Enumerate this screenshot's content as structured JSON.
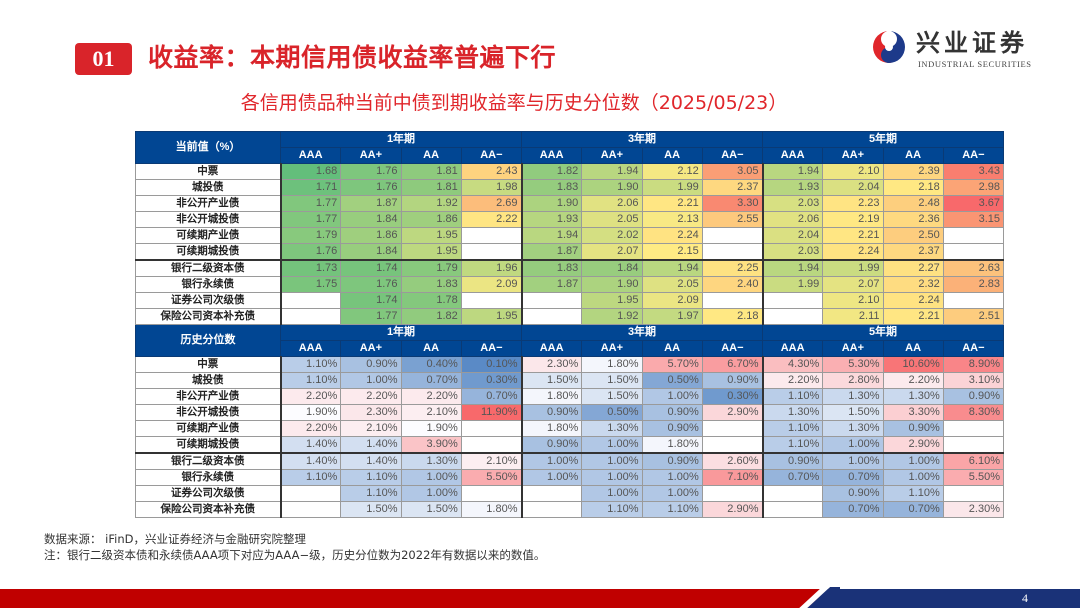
{
  "header": {
    "section_number": "01",
    "title": "收益率：本期信用债收益率普遍下行",
    "logo": {
      "name_cn": "兴业证券",
      "name_en": "INDUSTRIAL SECURITIES",
      "icon": "taiji-swirl-logo-icon"
    }
  },
  "subtitle": "各信用债品种当前中债到期收益率与历史分位数（2025/05/23）",
  "table": {
    "periods": [
      "1年期",
      "3年期",
      "5年期"
    ],
    "grades": [
      "AAA",
      "AA+",
      "AA",
      "AA−"
    ],
    "current": {
      "title": "当前值（%）",
      "rows": [
        {
          "label": "中票",
          "values": [
            "1.68",
            "1.76",
            "1.81",
            "2.43",
            "1.82",
            "1.94",
            "2.12",
            "3.05",
            "1.94",
            "2.10",
            "2.39",
            "3.43"
          ]
        },
        {
          "label": "城投债",
          "values": [
            "1.71",
            "1.76",
            "1.81",
            "1.98",
            "1.83",
            "1.90",
            "1.99",
            "2.37",
            "1.93",
            "2.04",
            "2.18",
            "2.98"
          ]
        },
        {
          "label": "非公开产业债",
          "values": [
            "1.77",
            "1.87",
            "1.92",
            "2.69",
            "1.90",
            "2.06",
            "2.21",
            "3.30",
            "2.03",
            "2.23",
            "2.48",
            "3.67"
          ]
        },
        {
          "label": "非公开城投债",
          "values": [
            "1.77",
            "1.84",
            "1.86",
            "2.22",
            "1.93",
            "2.05",
            "2.13",
            "2.55",
            "2.06",
            "2.19",
            "2.36",
            "3.15"
          ]
        },
        {
          "label": "可续期产业债",
          "values": [
            "1.79",
            "1.86",
            "1.95",
            "",
            "1.94",
            "2.02",
            "2.24",
            "",
            "2.04",
            "2.21",
            "2.50",
            ""
          ]
        },
        {
          "label": "可续期城投债",
          "values": [
            "1.76",
            "1.84",
            "1.95",
            "",
            "1.87",
            "2.07",
            "2.15",
            "",
            "2.03",
            "2.24",
            "2.37",
            ""
          ]
        },
        {
          "label": "银行二级资本债",
          "values": [
            "1.73",
            "1.74",
            "1.79",
            "1.96",
            "1.83",
            "1.84",
            "1.94",
            "2.25",
            "1.94",
            "1.99",
            "2.27",
            "2.63"
          ]
        },
        {
          "label": "银行永续债",
          "values": [
            "1.75",
            "1.76",
            "1.83",
            "2.09",
            "1.87",
            "1.90",
            "2.05",
            "2.40",
            "1.99",
            "2.07",
            "2.32",
            "2.83"
          ]
        },
        {
          "label": "证券公司次级债",
          "values": [
            "",
            "1.74",
            "1.78",
            "",
            "",
            "1.95",
            "2.09",
            "",
            "",
            "2.10",
            "2.24",
            ""
          ]
        },
        {
          "label": "保险公司资本补充债",
          "values": [
            "",
            "1.77",
            "1.82",
            "1.95",
            "",
            "1.92",
            "1.97",
            "2.18",
            "",
            "2.11",
            "2.21",
            "2.51"
          ]
        }
      ]
    },
    "percentile": {
      "title": "历史分位数",
      "rows": [
        {
          "label": "中票",
          "values": [
            "1.10%",
            "0.90%",
            "0.40%",
            "0.10%",
            "2.30%",
            "1.80%",
            "5.70%",
            "6.70%",
            "4.30%",
            "5.30%",
            "10.60%",
            "8.90%"
          ]
        },
        {
          "label": "城投债",
          "values": [
            "1.10%",
            "1.00%",
            "0.70%",
            "0.30%",
            "1.50%",
            "1.50%",
            "0.50%",
            "0.90%",
            "2.20%",
            "2.80%",
            "2.20%",
            "3.10%"
          ]
        },
        {
          "label": "非公开产业债",
          "values": [
            "2.20%",
            "2.20%",
            "2.20%",
            "0.70%",
            "1.80%",
            "1.50%",
            "1.00%",
            "0.30%",
            "1.10%",
            "1.30%",
            "1.30%",
            "0.90%"
          ]
        },
        {
          "label": "非公开城投债",
          "values": [
            "1.90%",
            "2.30%",
            "2.10%",
            "11.90%",
            "0.90%",
            "0.50%",
            "0.90%",
            "2.90%",
            "1.30%",
            "1.50%",
            "3.30%",
            "8.30%"
          ]
        },
        {
          "label": "可续期产业债",
          "values": [
            "2.20%",
            "2.10%",
            "1.90%",
            "",
            "1.80%",
            "1.30%",
            "0.90%",
            "",
            "1.10%",
            "1.30%",
            "0.90%",
            ""
          ]
        },
        {
          "label": "可续期城投债",
          "values": [
            "1.40%",
            "1.40%",
            "3.90%",
            "",
            "0.90%",
            "1.00%",
            "1.80%",
            "",
            "1.10%",
            "1.00%",
            "2.90%",
            ""
          ]
        },
        {
          "label": "银行二级资本债",
          "values": [
            "1.40%",
            "1.40%",
            "1.30%",
            "2.10%",
            "1.00%",
            "1.00%",
            "0.90%",
            "2.60%",
            "0.90%",
            "1.00%",
            "1.00%",
            "6.10%"
          ]
        },
        {
          "label": "银行永续债",
          "values": [
            "1.10%",
            "1.10%",
            "1.00%",
            "5.50%",
            "1.00%",
            "1.00%",
            "1.00%",
            "7.10%",
            "0.70%",
            "0.70%",
            "1.00%",
            "5.50%"
          ]
        },
        {
          "label": "证券公司次级债",
          "values": [
            "",
            "1.10%",
            "1.00%",
            "",
            "",
            "1.00%",
            "1.00%",
            "",
            "",
            "0.90%",
            "1.10%",
            ""
          ]
        },
        {
          "label": "保险公司资本补充债",
          "values": [
            "",
            "1.50%",
            "1.50%",
            "1.80%",
            "",
            "1.10%",
            "1.10%",
            "2.90%",
            "",
            "0.70%",
            "0.70%",
            "2.30%"
          ]
        }
      ]
    }
  },
  "notes": {
    "source": "数据来源： iFinD，兴业证券经济与金融研究院整理",
    "remark": "注：银行二级资本债和永续债AAA项下对应为AAA−级，历史分位数为2022年有数据以来的数值。"
  },
  "colors": {
    "brand_red": "#d9242a",
    "header_blue": "#014693",
    "footer_red": "#c00000",
    "footer_blue": "#1a3278",
    "heat_low": "#63be7b",
    "heat_mid": "#ffeb84",
    "heat_high": "#f8696b",
    "pct_low": "#5a8ac6",
    "pct_mid": "#fcfcff",
    "pct_high": "#f8696b"
  },
  "footer": {
    "page_number": "4"
  }
}
